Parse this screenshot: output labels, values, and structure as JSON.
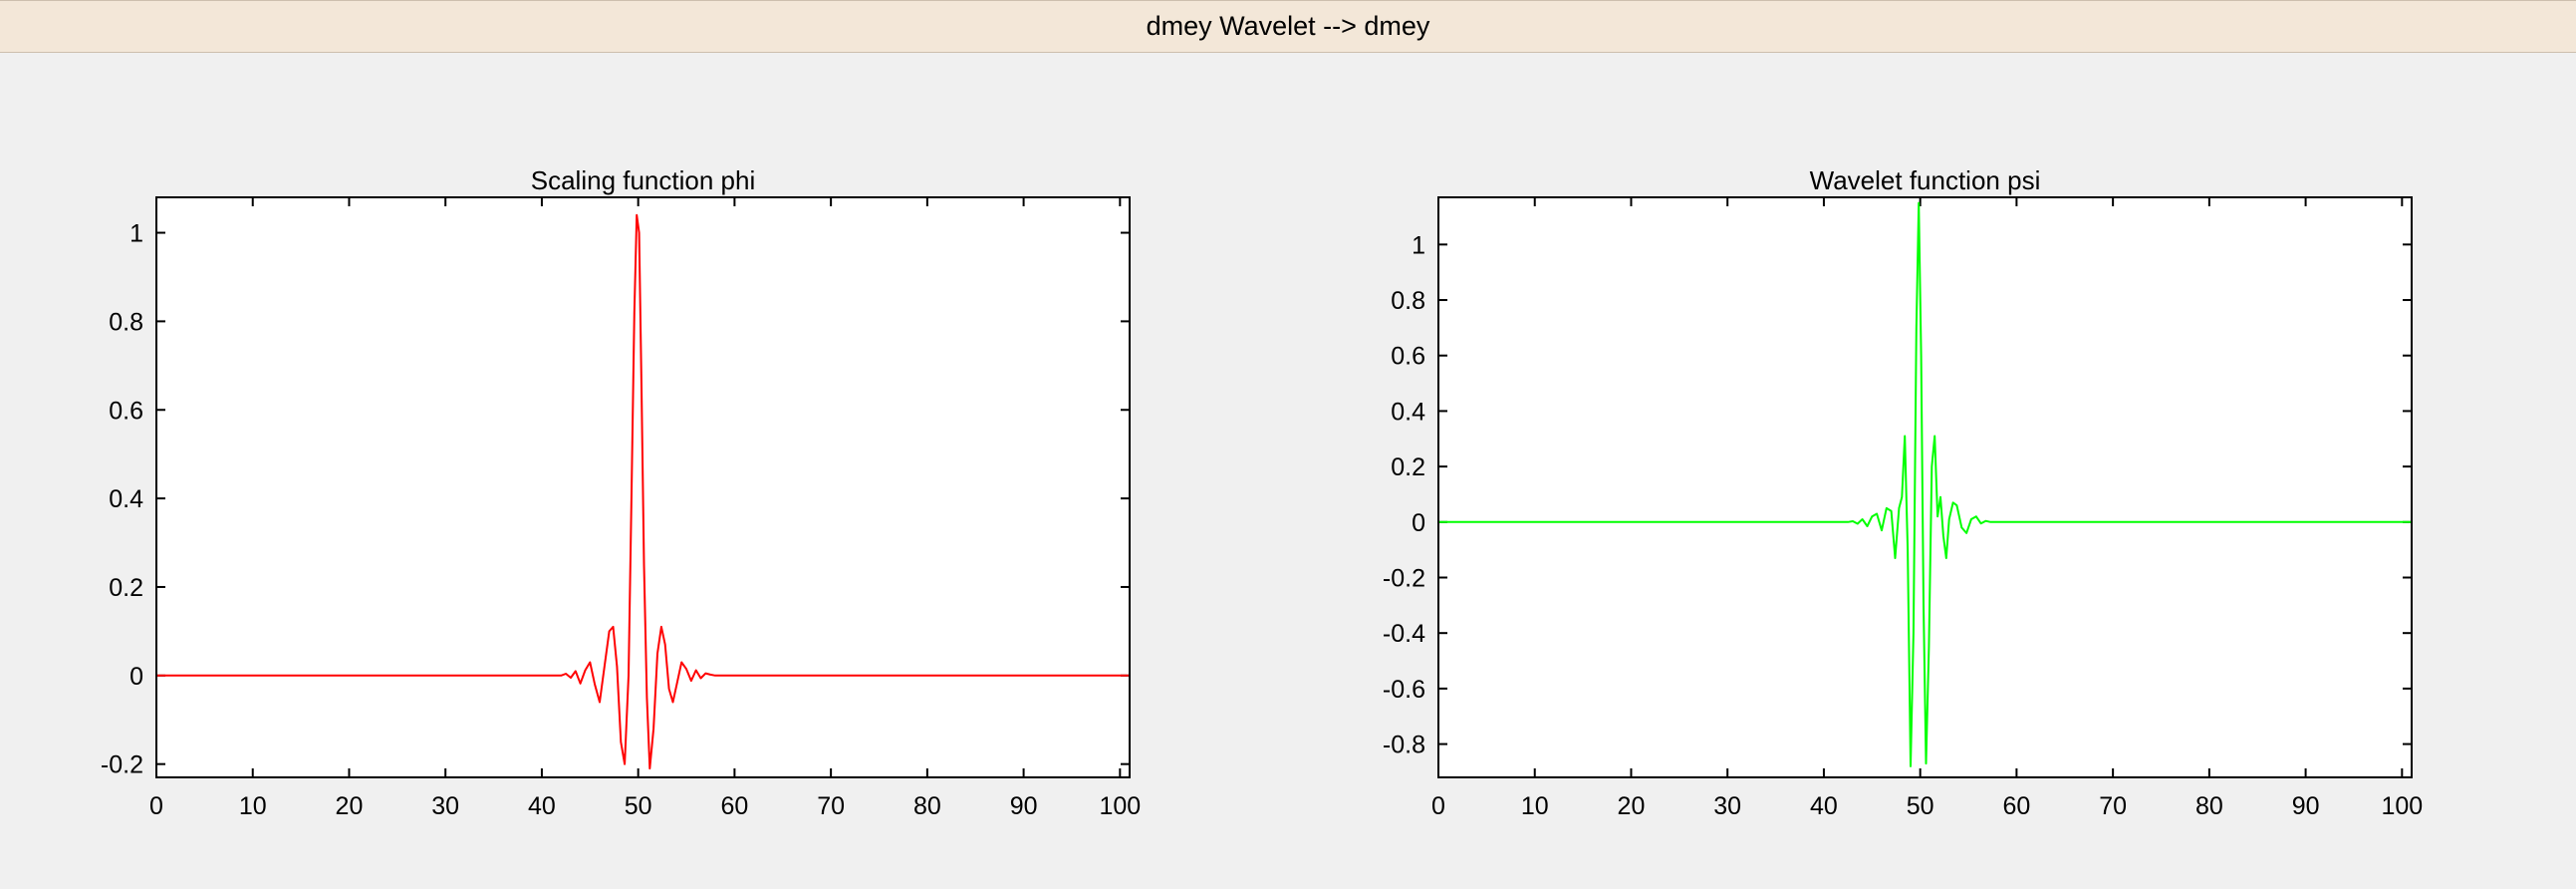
{
  "window": {
    "title": "dmey Wavelet -->  dmey"
  },
  "chart_data": [
    {
      "type": "line",
      "title": "Scaling function phi",
      "xlabel": "",
      "ylabel": "",
      "xlim": [
        0,
        101
      ],
      "ylim": [
        -0.23,
        1.08
      ],
      "xticks": [
        0,
        10,
        20,
        30,
        40,
        50,
        60,
        70,
        80,
        90,
        100
      ],
      "yticks": [
        -0.2,
        0,
        0.2,
        0.4,
        0.6,
        0.8,
        1
      ],
      "ytick_labels": [
        "-0.2",
        "0",
        "0.2",
        "0.4",
        "0.6",
        "0.8",
        "1"
      ],
      "grid": false,
      "color": "#ff0000",
      "series": [
        {
          "x": [
            0,
            41,
            42,
            42.5,
            43,
            43.5,
            44,
            44.5,
            45,
            45.5,
            46,
            46.5,
            47,
            47.4,
            47.8,
            48.2,
            48.6,
            49,
            49.3,
            49.6,
            49.85,
            50.1,
            50.35,
            50.6,
            50.9,
            51.2,
            51.6,
            52,
            52.4,
            52.8,
            53.2,
            53.6,
            54,
            54.5,
            55,
            55.5,
            56,
            56.5,
            57,
            57.5,
            58,
            59,
            101
          ],
          "y": [
            0,
            0,
            0,
            0.004,
            -0.005,
            0.01,
            -0.018,
            0.012,
            0.03,
            -0.02,
            -0.06,
            0.02,
            0.1,
            0.11,
            0.02,
            -0.15,
            -0.2,
            0.0,
            0.4,
            0.82,
            1.04,
            1.0,
            0.65,
            0.25,
            -0.05,
            -0.21,
            -0.12,
            0.05,
            0.11,
            0.07,
            -0.03,
            -0.06,
            -0.02,
            0.03,
            0.015,
            -0.012,
            0.012,
            -0.006,
            0.005,
            0.002,
            0,
            0,
            0
          ]
        }
      ]
    },
    {
      "type": "line",
      "title": "Wavelet function psi",
      "xlabel": "",
      "ylabel": "",
      "xlim": [
        0,
        101
      ],
      "ylim": [
        -0.92,
        1.17
      ],
      "xticks": [
        0,
        10,
        20,
        30,
        40,
        50,
        60,
        70,
        80,
        90,
        100
      ],
      "yticks": [
        -0.8,
        -0.6,
        -0.4,
        -0.2,
        0,
        0.2,
        0.4,
        0.6,
        0.8,
        1
      ],
      "ytick_labels": [
        "-0.8",
        "-0.6",
        "-0.4",
        "-0.2",
        "0",
        "0.2",
        "0.4",
        "0.6",
        "0.8",
        "1"
      ],
      "grid": false,
      "color": "#00ff00",
      "series": [
        {
          "x": [
            0,
            42.5,
            43,
            43.5,
            44,
            44.5,
            45,
            45.5,
            46,
            46.5,
            47,
            47.4,
            47.8,
            48.1,
            48.4,
            48.7,
            49,
            49.3,
            49.6,
            49.85,
            50.1,
            50.35,
            50.6,
            50.9,
            51.2,
            51.5,
            51.8,
            52.1,
            52.4,
            52.7,
            53.0,
            53.4,
            53.8,
            54.3,
            54.8,
            55.3,
            55.8,
            56.3,
            56.8,
            57.3,
            58,
            101
          ],
          "y": [
            0,
            0,
            0.003,
            -0.006,
            0.01,
            -0.015,
            0.02,
            0.03,
            -0.03,
            0.05,
            0.04,
            -0.13,
            0.05,
            0.09,
            0.31,
            -0.1,
            -0.88,
            -0.4,
            0.7,
            1.15,
            0.6,
            -0.3,
            -0.87,
            -0.45,
            0.2,
            0.31,
            0.02,
            0.09,
            -0.05,
            -0.13,
            0.01,
            0.07,
            0.06,
            -0.02,
            -0.04,
            0.01,
            0.02,
            -0.005,
            0.004,
            0,
            0,
            0
          ]
        }
      ]
    }
  ]
}
